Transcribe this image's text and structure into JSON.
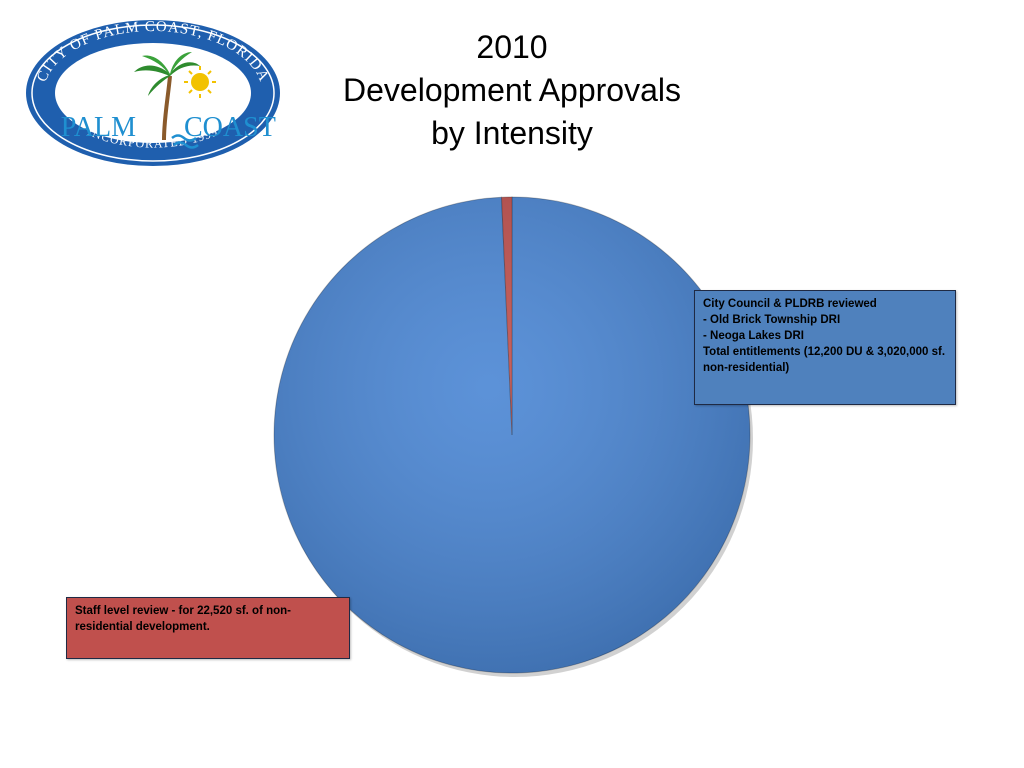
{
  "slide": {
    "title_lines": [
      "2010",
      "Development Approvals",
      "by Intensity"
    ]
  },
  "logo": {
    "ring_top_text": "CITY OF PALM COAST, FLORIDA",
    "ring_bottom_text": "INCORPORATED 1999",
    "wordmark_left": "PALM",
    "wordmark_right": "COAST",
    "colors": {
      "ring": "#1f5fae",
      "inner": "#ffffff",
      "palm": "#2e8b2e",
      "sun": "#f2c200",
      "water": "#1f8fd0"
    }
  },
  "callouts": {
    "blue": {
      "lines": [
        "City Council & PLDRB reviewed",
        "- Old Brick Township DRI",
        "- Neoga Lakes DRI",
        "Total entitlements (12,200 DU & 3,020,000 sf. non-residential)"
      ]
    },
    "red": {
      "lines": [
        "Staff level review - for 22,520 sf. of non-residential development."
      ]
    }
  },
  "chart_data": {
    "type": "pie",
    "start_angle_deg": 0,
    "direction": "clockwise",
    "slices": [
      {
        "value": 99.3,
        "color": "#4a86d4"
      },
      {
        "value": 0.7,
        "color": "#c0504d"
      }
    ]
  }
}
